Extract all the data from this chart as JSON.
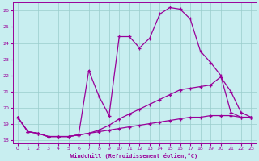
{
  "xlabel": "Windchill (Refroidissement éolien,°C)",
  "xlim": [
    -0.5,
    23.5
  ],
  "ylim": [
    17.8,
    26.5
  ],
  "yticks": [
    18,
    19,
    20,
    21,
    22,
    23,
    24,
    25,
    26
  ],
  "xticks": [
    0,
    1,
    2,
    3,
    4,
    5,
    6,
    7,
    8,
    9,
    10,
    11,
    12,
    13,
    14,
    15,
    16,
    17,
    18,
    19,
    20,
    21,
    22,
    23
  ],
  "bg_color": "#c8eef0",
  "grid_color": "#99cccc",
  "line_color": "#990099",
  "line1_y": [
    19.4,
    18.5,
    18.4,
    18.2,
    18.2,
    18.2,
    18.3,
    18.4,
    18.5,
    18.6,
    18.7,
    18.8,
    18.9,
    19.0,
    19.1,
    19.2,
    19.3,
    19.4,
    19.4,
    19.5,
    19.5,
    19.5,
    19.4,
    19.4
  ],
  "line2_y": [
    19.4,
    18.5,
    18.4,
    18.2,
    18.2,
    18.2,
    18.3,
    18.4,
    18.6,
    18.9,
    19.3,
    19.6,
    19.9,
    20.2,
    20.5,
    20.8,
    21.1,
    21.2,
    21.3,
    21.4,
    21.9,
    21.0,
    19.7,
    19.4
  ],
  "line3_y": [
    19.4,
    18.5,
    18.4,
    18.2,
    18.2,
    18.2,
    18.3,
    22.3,
    20.7,
    19.5,
    24.4,
    24.4,
    23.7,
    24.3,
    25.8,
    26.2,
    26.1,
    25.5,
    23.5,
    22.8,
    22.0,
    19.7,
    19.4,
    19.4
  ]
}
